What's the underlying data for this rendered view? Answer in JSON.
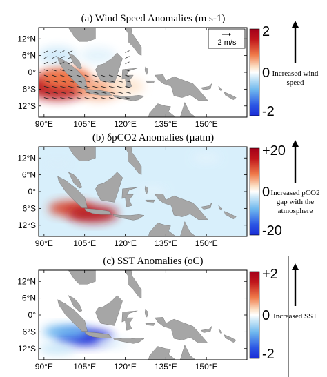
{
  "colors": {
    "ocean": "#ffffff",
    "land": "#a6a6a6",
    "scale_red": "#c0161b",
    "scale_white": "#ffffff",
    "scale_blue": "#1a2cd6",
    "annotation_arrow": "#000000"
  },
  "panels": [
    {
      "title": "(a) Wind Speed Anomalies (m s-1)",
      "colorbar_ticks": [
        "2",
        "0",
        "-2"
      ],
      "colorbar_range": [
        -2,
        2
      ],
      "annotation": [
        "Increased wind",
        "speed"
      ],
      "vector_key": "2 m/s",
      "field": "wind"
    },
    {
      "title": "δpCO2 Anomalies (μatm)",
      "title_prefix": "(b) ",
      "colorbar_ticks": [
        "+20",
        "0",
        "-20"
      ],
      "colorbar_range": [
        -20,
        20
      ],
      "annotation": [
        "Increased pCO2",
        "gap with the",
        "atmosphere"
      ],
      "field": "pco2"
    },
    {
      "title": "(c) SST Anomalies (oC)",
      "colorbar_ticks": [
        "+2",
        "0",
        "-2"
      ],
      "colorbar_range": [
        -2,
        2
      ],
      "annotation": [
        "Increased SST"
      ],
      "field": "sst"
    }
  ],
  "map_axes": {
    "lon_ticks": [
      "90°E",
      "105°E",
      "120°E",
      "135°E",
      "150°E"
    ],
    "lat_ticks": [
      "12°N",
      "6°N",
      "0°",
      "6°S",
      "12°S"
    ],
    "lon_values": [
      90,
      105,
      120,
      135,
      150
    ],
    "lat_values": [
      12,
      6,
      0,
      -6,
      -12
    ],
    "lon_range": [
      88,
      165
    ],
    "lat_range": [
      -16,
      16
    ]
  },
  "chart_data": [
    {
      "type": "heatmap",
      "title": "(a) Wind Speed Anomalies (m s-1)",
      "xlabel": "",
      "ylabel": "",
      "xlim": [
        88,
        165
      ],
      "ylim": [
        -16,
        16
      ],
      "colorbar": {
        "min": -2,
        "max": 2,
        "ticks": [
          2,
          0,
          -2
        ]
      },
      "anomaly_regions": [
        {
          "lon": 95,
          "lat": -5,
          "value": 2.0
        },
        {
          "lon": 98,
          "lat": -2,
          "value": 1.2
        },
        {
          "lon": 110,
          "lat": -6,
          "value": 0.9
        },
        {
          "lon": 120,
          "lat": -5,
          "value": 0.4
        },
        {
          "lon": 95,
          "lat": 6,
          "value": -0.5
        },
        {
          "lon": 110,
          "lat": 6,
          "value": -0.3
        }
      ],
      "vector_key": "2 m/s"
    },
    {
      "type": "heatmap",
      "title": "(b) δpCO2 Anomalies (μatm)",
      "xlabel": "",
      "ylabel": "",
      "xlim": [
        88,
        165
      ],
      "ylim": [
        -16,
        16
      ],
      "colorbar": {
        "min": -20,
        "max": 20,
        "ticks": [
          20,
          0,
          -20
        ]
      },
      "anomaly_regions": [
        {
          "lon": 100,
          "lat": -6,
          "value": 16
        },
        {
          "lon": 108,
          "lat": -8,
          "value": 20
        },
        {
          "lon": 95,
          "lat": 10,
          "value": -4
        },
        {
          "lon": 130,
          "lat": 0,
          "value": -3
        },
        {
          "lon": 150,
          "lat": 12,
          "value": -3
        }
      ]
    },
    {
      "type": "heatmap",
      "title": "(c) SST Anomalies (oC)",
      "xlabel": "",
      "ylabel": "",
      "xlim": [
        88,
        165
      ],
      "ylim": [
        -16,
        16
      ],
      "colorbar": {
        "min": -2,
        "max": 2,
        "ticks": [
          2,
          0,
          -2
        ]
      },
      "anomaly_regions": [
        {
          "lon": 105,
          "lat": -8,
          "value": -2.0
        },
        {
          "lon": 98,
          "lat": -6,
          "value": -1.2
        },
        {
          "lon": 95,
          "lat": -12,
          "value": -0.6
        },
        {
          "lon": 115,
          "lat": -10,
          "value": -0.3
        }
      ]
    }
  ]
}
